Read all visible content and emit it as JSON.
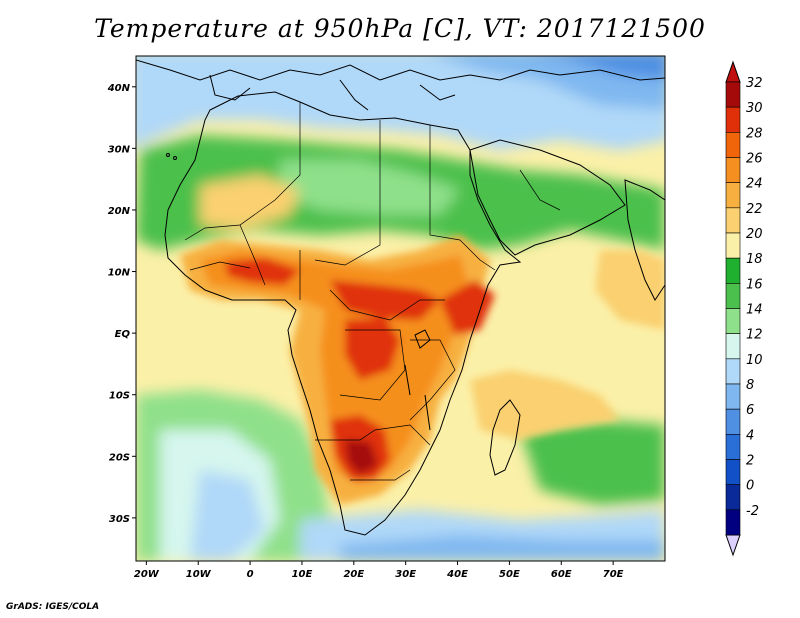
{
  "title": "Temperature at 950hPa [C], VT: 2017121500",
  "footer": "GrADS: IGES/COLA",
  "map": {
    "lon_range": [
      -22,
      80
    ],
    "lat_range": [
      -37,
      45
    ],
    "lat_ticks": [
      {
        "value": 40,
        "label": "40N"
      },
      {
        "value": 30,
        "label": "30N"
      },
      {
        "value": 20,
        "label": "20N"
      },
      {
        "value": 10,
        "label": "10N"
      },
      {
        "value": 0,
        "label": "EQ"
      },
      {
        "value": -10,
        "label": "10S"
      },
      {
        "value": -20,
        "label": "20S"
      },
      {
        "value": -30,
        "label": "30S"
      }
    ],
    "lon_ticks": [
      {
        "value": -20,
        "label": "20W"
      },
      {
        "value": -10,
        "label": "10W"
      },
      {
        "value": 0,
        "label": "0"
      },
      {
        "value": 10,
        "label": "10E"
      },
      {
        "value": 20,
        "label": "20E"
      },
      {
        "value": 30,
        "label": "30E"
      },
      {
        "value": 40,
        "label": "40E"
      },
      {
        "value": 50,
        "label": "50E"
      },
      {
        "value": 60,
        "label": "60E"
      },
      {
        "value": 70,
        "label": "70E"
      }
    ]
  },
  "colorbar": {
    "levels": [
      "32",
      "30",
      "28",
      "26",
      "24",
      "22",
      "20",
      "18",
      "16",
      "14",
      "12",
      "10",
      "8",
      "6",
      "4",
      "2",
      "0",
      "-2"
    ],
    "colors": [
      "#a50a0a",
      "#e0300a",
      "#f0640a",
      "#f58f1f",
      "#f7b040",
      "#fad070",
      "#fbf0a8",
      "#20b030",
      "#4cc04c",
      "#8fe08a",
      "#d6f6ee",
      "#b0d8f8",
      "#7fb8f0",
      "#4f90e3",
      "#2a6ed8",
      "#1250c8",
      "#0a2a9a",
      "#000080"
    ],
    "top_color": "#c01010",
    "bottom_color": "#dcd0ff"
  }
}
